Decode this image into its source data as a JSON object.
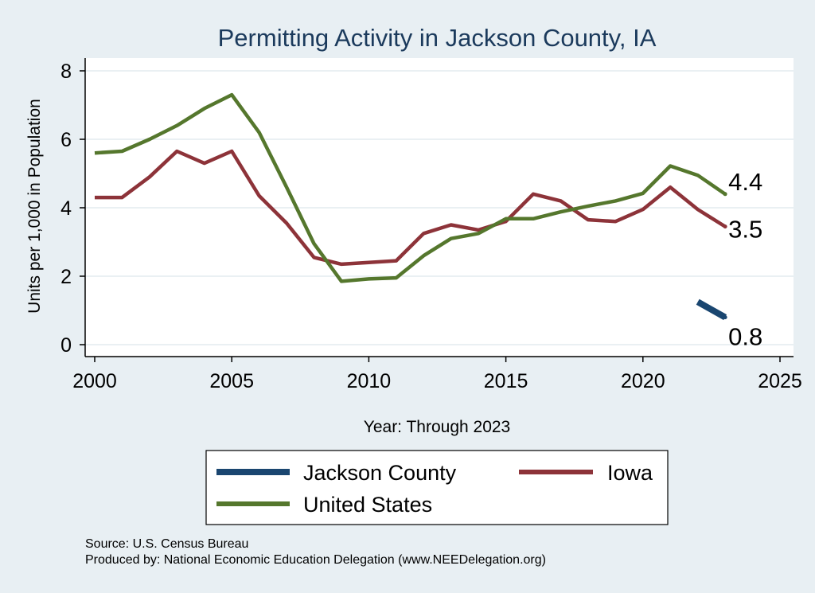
{
  "chart_data": {
    "type": "line",
    "title": "Permitting Activity in Jackson County, IA",
    "xlabel": "Year: Through 2023",
    "ylabel": "Units per 1,000 in Population",
    "xlim": [
      2000,
      2025
    ],
    "ylim": [
      0,
      8
    ],
    "x_ticks": [
      "2000",
      "2005",
      "2010",
      "2015",
      "2020",
      "2025"
    ],
    "y_ticks": [
      "0",
      "2",
      "4",
      "6",
      "8"
    ],
    "grid": true,
    "legend_position": "bottom",
    "series": [
      {
        "name": "Jackson County",
        "color": "#1a4670",
        "x": [
          2022,
          2023
        ],
        "values": [
          1.25,
          0.8
        ],
        "end_label": "0.8"
      },
      {
        "name": "Iowa",
        "color": "#8d3339",
        "x": [
          2000,
          2001,
          2002,
          2003,
          2004,
          2005,
          2006,
          2007,
          2008,
          2009,
          2010,
          2011,
          2012,
          2013,
          2014,
          2015,
          2016,
          2017,
          2018,
          2019,
          2020,
          2021,
          2022,
          2023
        ],
        "values": [
          4.3,
          4.3,
          4.9,
          5.65,
          5.3,
          5.65,
          4.35,
          3.55,
          2.55,
          2.35,
          2.4,
          2.45,
          3.25,
          3.5,
          3.35,
          3.6,
          4.4,
          4.2,
          3.65,
          3.6,
          3.95,
          4.6,
          3.95,
          3.45
        ],
        "end_label": "3.5"
      },
      {
        "name": "United States",
        "color": "#55772d",
        "x": [
          2000,
          2001,
          2002,
          2003,
          2004,
          2005,
          2006,
          2007,
          2008,
          2009,
          2010,
          2011,
          2012,
          2013,
          2014,
          2015,
          2016,
          2017,
          2018,
          2019,
          2020,
          2021,
          2022,
          2023
        ],
        "values": [
          5.6,
          5.65,
          6.0,
          6.4,
          6.9,
          7.3,
          6.2,
          4.6,
          2.95,
          1.85,
          1.92,
          1.95,
          2.6,
          3.1,
          3.25,
          3.68,
          3.68,
          3.88,
          4.05,
          4.2,
          4.42,
          5.22,
          4.95,
          4.4
        ],
        "end_label": "4.4"
      }
    ],
    "legend": [
      {
        "label": "Jackson County",
        "color": "#1a4670"
      },
      {
        "label": "Iowa",
        "color": "#8d3339"
      },
      {
        "label": "United States",
        "color": "#55772d"
      }
    ],
    "notes": [
      "Source: U.S. Census Bureau",
      "Produced by: National Economic Education Delegation (www.NEEDelegation.org)"
    ]
  }
}
